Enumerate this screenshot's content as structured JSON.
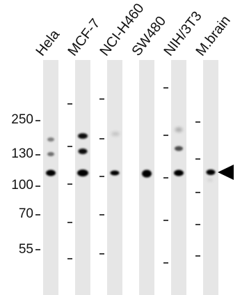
{
  "lanes": [
    {
      "label": "Hela"
    },
    {
      "label": "MCF-7"
    },
    {
      "label": "NCI-H460"
    },
    {
      "label": "SW480"
    },
    {
      "label": "NIH/3T3"
    },
    {
      "label": "M.brain"
    }
  ],
  "mw_markers": [
    {
      "label": "250"
    },
    {
      "label": "130"
    },
    {
      "label": "100"
    },
    {
      "label": "70"
    },
    {
      "label": "55"
    }
  ],
  "arrow": {
    "points_to_lane": "M.brain",
    "color": "#000000"
  }
}
